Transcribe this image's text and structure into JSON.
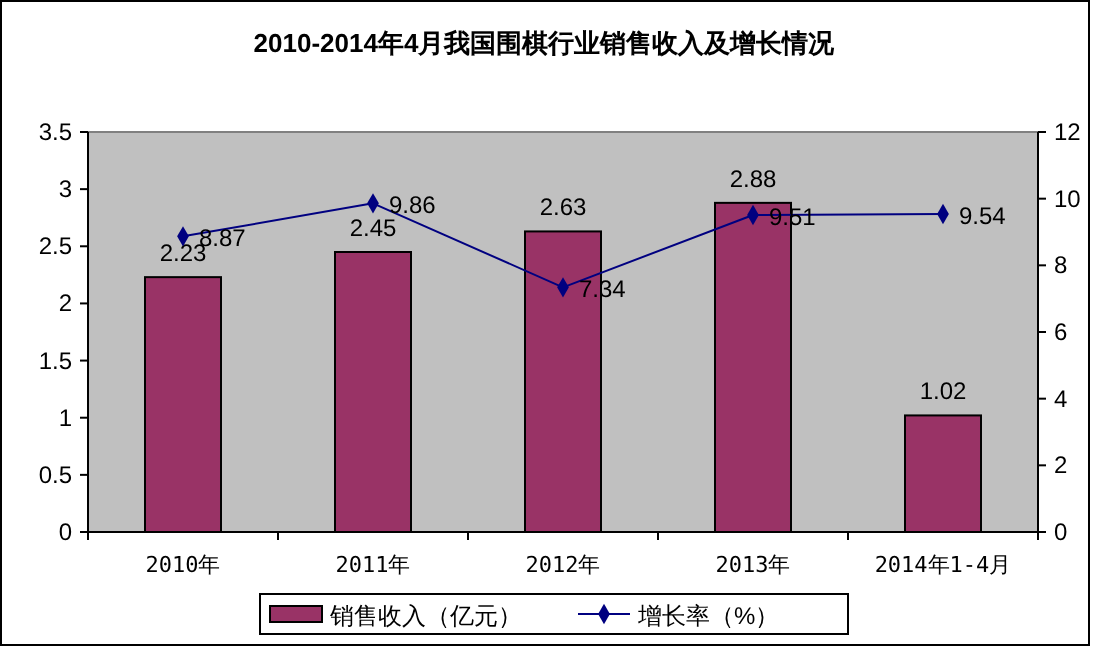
{
  "chart_data": {
    "type": "bar",
    "title": "2010-2014年4月我国围棋行业销售收入及增长情况",
    "categories": [
      "2010年",
      "2011年",
      "2012年",
      "2013年",
      "2014年1-4月"
    ],
    "series": [
      {
        "name": "销售收入（亿元）",
        "color": "#993366",
        "values": [
          2.23,
          2.45,
          2.63,
          2.88,
          1.02
        ]
      },
      {
        "name": "增长率（%）",
        "type": "line",
        "axis": "y2",
        "color": "#000080",
        "values": [
          8.87,
          9.86,
          7.34,
          9.51,
          9.54
        ]
      }
    ],
    "ylim": [
      0,
      3.5
    ],
    "yticks": [
      0,
      0.5,
      1,
      1.5,
      2,
      2.5,
      3,
      3.5
    ],
    "y2lim": [
      0,
      12
    ],
    "y2ticks": [
      0,
      2,
      4,
      6,
      8,
      10,
      12
    ],
    "data_labels": true,
    "legend": "bottom",
    "marker": "diamond",
    "line_style": "solid",
    "grid": false
  }
}
